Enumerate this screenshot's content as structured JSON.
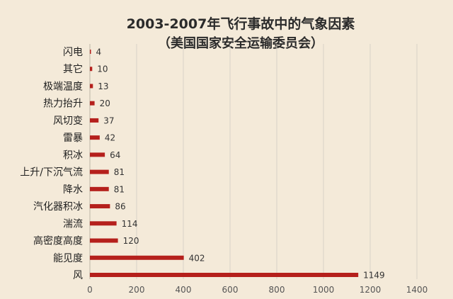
{
  "chart_data": {
    "type": "bar",
    "orientation": "horizontal",
    "title": "2003-2007年飞行事故中的气象因素",
    "subtitle": "（美国国家安全运输委员会）",
    "categories": [
      "闪电",
      "其它",
      "极端温度",
      "热力抬升",
      "风切变",
      "雷暴",
      "积冰",
      "上升/下沉气流",
      "降水",
      "汽化器积冰",
      "湍流",
      "高密度高度",
      "能见度",
      "风"
    ],
    "values": [
      4,
      10,
      13,
      20,
      37,
      42,
      64,
      81,
      81,
      86,
      114,
      120,
      402,
      1149
    ],
    "xlim": [
      0,
      1400
    ],
    "xticks": [
      0,
      200,
      400,
      600,
      800,
      1000,
      1200,
      1400
    ],
    "grid": true,
    "legend": "none",
    "bar_color": "#b5201c"
  }
}
